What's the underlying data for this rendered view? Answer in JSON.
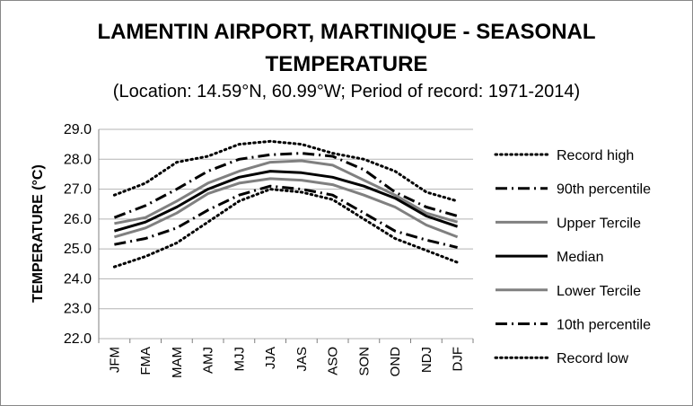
{
  "chart_data": {
    "type": "line",
    "title_line1": "LAMENTIN AIRPORT, MARTINIQUE - SEASONAL",
    "title_line2": "TEMPERATURE",
    "subtitle": "(Location: 14.59°N, 60.99°W; Period of record: 1971-2014)",
    "xlabel": "",
    "ylabel": "TEMPERATURE (°C)",
    "ylim": [
      22.0,
      29.0
    ],
    "yticks": [
      "22.0",
      "23.0",
      "24.0",
      "25.0",
      "26.0",
      "27.0",
      "28.0",
      "29.0"
    ],
    "categories": [
      "JFM",
      "FMA",
      "MAM",
      "AMJ",
      "MJJ",
      "JJA",
      "JAS",
      "ASO",
      "SON",
      "OND",
      "NDJ",
      "DJF"
    ],
    "grid": true,
    "legend_position": "right",
    "series": [
      {
        "name": "Record high",
        "color": "#000000",
        "style": "dotted",
        "values": [
          26.8,
          27.2,
          27.9,
          28.1,
          28.5,
          28.6,
          28.5,
          28.2,
          28.0,
          27.6,
          26.9,
          26.6
        ]
      },
      {
        "name": "90th percentile",
        "color": "#000000",
        "style": "dashdot",
        "values": [
          26.05,
          26.45,
          27.0,
          27.6,
          28.0,
          28.15,
          28.2,
          28.1,
          27.65,
          26.9,
          26.4,
          26.1
        ]
      },
      {
        "name": "Upper Tercile",
        "color": "#808080",
        "style": "solid",
        "values": [
          25.85,
          26.05,
          26.6,
          27.2,
          27.6,
          27.9,
          27.95,
          27.8,
          27.3,
          26.8,
          26.2,
          25.9
        ]
      },
      {
        "name": "Median",
        "color": "#000000",
        "style": "solid",
        "values": [
          25.6,
          25.9,
          26.4,
          27.0,
          27.4,
          27.6,
          27.55,
          27.4,
          27.1,
          26.7,
          26.1,
          25.75
        ]
      },
      {
        "name": "Lower Tercile",
        "color": "#808080",
        "style": "solid",
        "values": [
          25.4,
          25.7,
          26.2,
          26.85,
          27.2,
          27.35,
          27.3,
          27.15,
          26.8,
          26.4,
          25.8,
          25.4
        ]
      },
      {
        "name": "10th percentile",
        "color": "#000000",
        "style": "dashdot",
        "values": [
          25.15,
          25.35,
          25.7,
          26.3,
          26.8,
          27.1,
          27.0,
          26.8,
          26.2,
          25.6,
          25.3,
          25.05
        ]
      },
      {
        "name": "Record low",
        "color": "#000000",
        "style": "dotted",
        "values": [
          24.4,
          24.75,
          25.2,
          25.9,
          26.6,
          27.0,
          26.9,
          26.65,
          26.0,
          25.35,
          24.95,
          24.55
        ]
      }
    ]
  }
}
